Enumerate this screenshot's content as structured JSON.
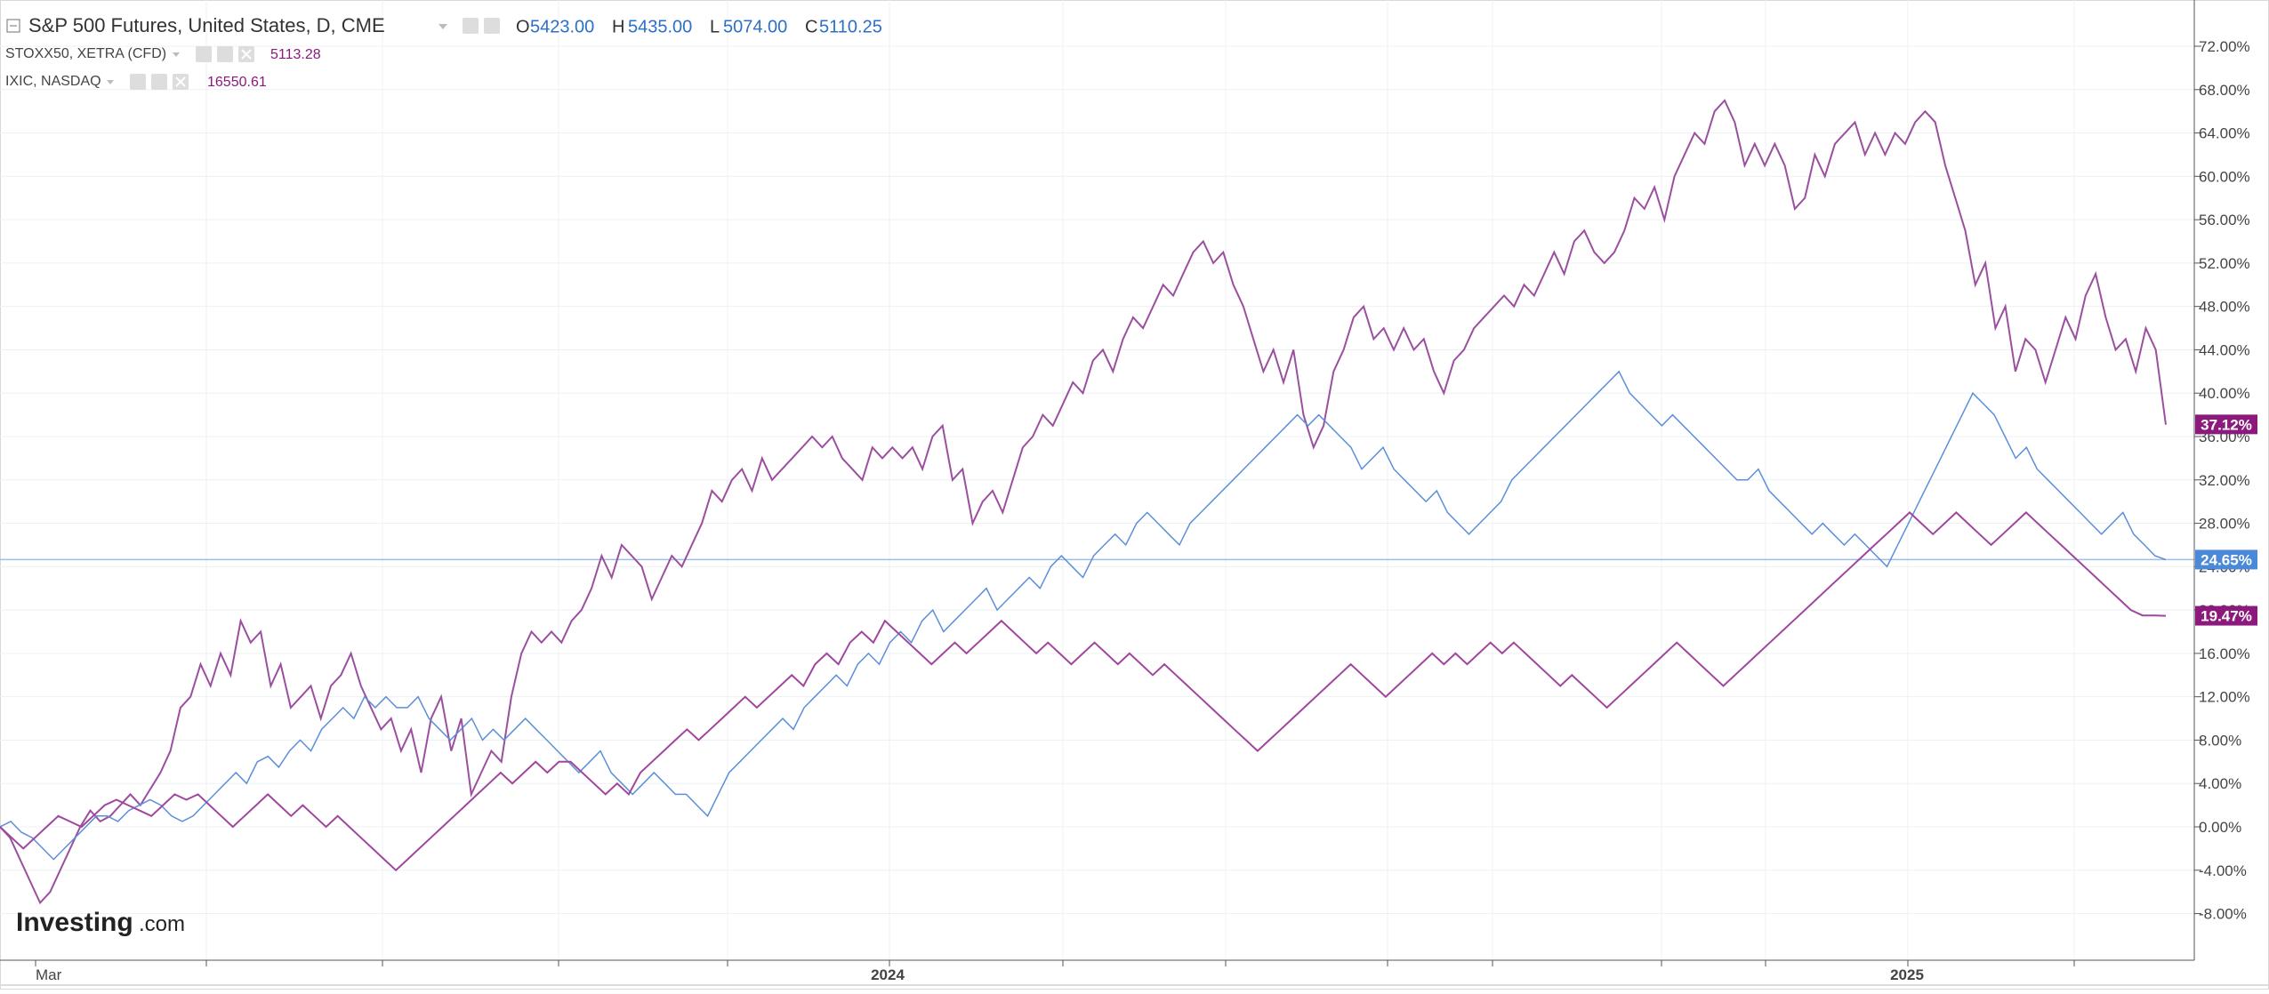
{
  "legend": {
    "main": {
      "title": "S&P 500 Futures, United States, D, CME",
      "o_label": "O",
      "o_value": "5423.00",
      "h_label": "H",
      "h_value": "5435.00",
      "l_label": "L",
      "l_value": "5074.00",
      "c_label": "C",
      "c_value": "5110.25"
    },
    "rows": [
      {
        "title": "STOXX50, XETRA (CFD)",
        "value": "5113.28"
      },
      {
        "title": "IXIC, NASDAQ",
        "value": "16550.61"
      }
    ]
  },
  "watermark": {
    "brand": "Investing",
    "suffix": ".com"
  },
  "colors": {
    "sp500": "#5b8fd9",
    "stoxx50": "#9b4f9f",
    "ixic": "#a0479d",
    "label_purple": "#8b1a7c",
    "label_blue": "#4a88d8",
    "legend_value_blue": "#2c6fc7",
    "legend_value_purple": "#8b1a7c",
    "grid": "#eef0f3",
    "axis_text": "#444444"
  },
  "chart_data": {
    "type": "line",
    "ylim": [
      -10.0,
      76.0
    ],
    "y_ticks": [
      "-8.00%",
      "-4.00%",
      "0.00%",
      "4.00%",
      "8.00%",
      "12.00%",
      "16.00%",
      "20.00%",
      "24.00%",
      "28.00%",
      "32.00%",
      "36.00%",
      "40.00%",
      "44.00%",
      "48.00%",
      "52.00%",
      "56.00%",
      "60.00%",
      "64.00%",
      "68.00%",
      "72.00%"
    ],
    "x_tick_labels": [
      "Mar",
      "2024",
      "2025"
    ],
    "series_stoxx_points": [
      [
        0,
        0
      ],
      [
        0.5,
        -1
      ],
      [
        1,
        -3
      ],
      [
        1.5,
        -5
      ],
      [
        2,
        -7
      ],
      [
        2.5,
        -6
      ],
      [
        3,
        -4
      ],
      [
        3.5,
        -2
      ],
      [
        4,
        0
      ],
      [
        4.5,
        1.5
      ],
      [
        5,
        0.5
      ],
      [
        5.5,
        1
      ],
      [
        6,
        2
      ],
      [
        6.5,
        3
      ],
      [
        7,
        2
      ],
      [
        7.5,
        3.5
      ],
      [
        8,
        5
      ],
      [
        8.5,
        7
      ],
      [
        9,
        11
      ],
      [
        9.5,
        12
      ],
      [
        10,
        15
      ],
      [
        10.5,
        13
      ],
      [
        11,
        16
      ],
      [
        11.5,
        14
      ],
      [
        12,
        19
      ],
      [
        12.5,
        17
      ],
      [
        13,
        18
      ],
      [
        13.5,
        13
      ],
      [
        14,
        15
      ],
      [
        14.5,
        11
      ],
      [
        15,
        12
      ],
      [
        15.5,
        13
      ],
      [
        16,
        10
      ],
      [
        16.5,
        13
      ],
      [
        17,
        14
      ],
      [
        17.5,
        16
      ],
      [
        18,
        13
      ],
      [
        18.5,
        11
      ],
      [
        19,
        9
      ],
      [
        19.5,
        10
      ],
      [
        20,
        7
      ],
      [
        20.5,
        9
      ],
      [
        21,
        5
      ],
      [
        21.5,
        10
      ],
      [
        22,
        12
      ],
      [
        22.5,
        7
      ],
      [
        23,
        10
      ],
      [
        23.5,
        3
      ],
      [
        24,
        5
      ],
      [
        24.5,
        7
      ],
      [
        25,
        6
      ],
      [
        25.5,
        12
      ],
      [
        26,
        16
      ],
      [
        26.5,
        18
      ],
      [
        27,
        17
      ],
      [
        27.5,
        18
      ],
      [
        28,
        17
      ],
      [
        28.5,
        19
      ],
      [
        29,
        20
      ],
      [
        29.5,
        22
      ],
      [
        30,
        25
      ],
      [
        30.5,
        23
      ],
      [
        31,
        26
      ],
      [
        31.5,
        25
      ],
      [
        32,
        24
      ],
      [
        32.5,
        21
      ],
      [
        33,
        23
      ],
      [
        33.5,
        25
      ],
      [
        34,
        24
      ],
      [
        34.5,
        26
      ],
      [
        35,
        28
      ],
      [
        35.5,
        31
      ],
      [
        36,
        30
      ],
      [
        36.5,
        32
      ],
      [
        37,
        33
      ],
      [
        37.5,
        31
      ],
      [
        38,
        34
      ],
      [
        38.5,
        32
      ],
      [
        39,
        33
      ],
      [
        39.5,
        34
      ],
      [
        40,
        35
      ],
      [
        40.5,
        36
      ],
      [
        41,
        35
      ],
      [
        41.5,
        36
      ],
      [
        42,
        34
      ],
      [
        42.5,
        33
      ],
      [
        43,
        32
      ],
      [
        43.5,
        35
      ],
      [
        44,
        34
      ],
      [
        44.5,
        35
      ],
      [
        45,
        34
      ],
      [
        45.5,
        35
      ],
      [
        46,
        33
      ],
      [
        46.5,
        36
      ],
      [
        47,
        37
      ],
      [
        47.5,
        32
      ],
      [
        48,
        33
      ],
      [
        48.5,
        28
      ],
      [
        49,
        30
      ],
      [
        49.5,
        31
      ],
      [
        50,
        29
      ],
      [
        50.5,
        32
      ],
      [
        51,
        35
      ],
      [
        51.5,
        36
      ],
      [
        52,
        38
      ],
      [
        52.5,
        37
      ],
      [
        53,
        39
      ],
      [
        53.5,
        41
      ],
      [
        54,
        40
      ],
      [
        54.5,
        43
      ],
      [
        55,
        44
      ],
      [
        55.5,
        42
      ],
      [
        56,
        45
      ],
      [
        56.5,
        47
      ],
      [
        57,
        46
      ],
      [
        57.5,
        48
      ],
      [
        58,
        50
      ],
      [
        58.5,
        49
      ],
      [
        59,
        51
      ],
      [
        59.5,
        53
      ],
      [
        60,
        54
      ],
      [
        60.5,
        52
      ],
      [
        61,
        53
      ],
      [
        61.5,
        50
      ],
      [
        62,
        48
      ],
      [
        62.5,
        45
      ],
      [
        63,
        42
      ],
      [
        63.5,
        44
      ],
      [
        64,
        41
      ],
      [
        64.5,
        44
      ],
      [
        65,
        38
      ],
      [
        65.5,
        35
      ],
      [
        66,
        37
      ],
      [
        66.5,
        42
      ],
      [
        67,
        44
      ],
      [
        67.5,
        47
      ],
      [
        68,
        48
      ],
      [
        68.5,
        45
      ],
      [
        69,
        46
      ],
      [
        69.5,
        44
      ],
      [
        70,
        46
      ],
      [
        70.5,
        44
      ],
      [
        71,
        45
      ],
      [
        71.5,
        42
      ],
      [
        72,
        40
      ],
      [
        72.5,
        43
      ],
      [
        73,
        44
      ],
      [
        73.5,
        46
      ],
      [
        74,
        47
      ],
      [
        74.5,
        48
      ],
      [
        75,
        49
      ],
      [
        75.5,
        48
      ],
      [
        76,
        50
      ],
      [
        76.5,
        49
      ],
      [
        77,
        51
      ],
      [
        77.5,
        53
      ],
      [
        78,
        51
      ],
      [
        78.5,
        54
      ],
      [
        79,
        55
      ],
      [
        79.5,
        53
      ],
      [
        80,
        52
      ],
      [
        80.5,
        53
      ],
      [
        81,
        55
      ],
      [
        81.5,
        58
      ],
      [
        82,
        57
      ],
      [
        82.5,
        59
      ],
      [
        83,
        56
      ],
      [
        83.5,
        60
      ],
      [
        84,
        62
      ],
      [
        84.5,
        64
      ],
      [
        85,
        63
      ],
      [
        85.5,
        66
      ],
      [
        86,
        67
      ],
      [
        86.5,
        65
      ],
      [
        87,
        61
      ],
      [
        87.5,
        63
      ],
      [
        88,
        61
      ],
      [
        88.5,
        63
      ],
      [
        89,
        61
      ],
      [
        89.5,
        57
      ],
      [
        90,
        58
      ],
      [
        90.5,
        62
      ],
      [
        91,
        60
      ],
      [
        91.5,
        63
      ],
      [
        92,
        64
      ],
      [
        92.5,
        65
      ],
      [
        93,
        62
      ],
      [
        93.5,
        64
      ],
      [
        94,
        62
      ],
      [
        94.5,
        64
      ],
      [
        95,
        63
      ],
      [
        95.5,
        65
      ],
      [
        96,
        66
      ],
      [
        96.5,
        65
      ],
      [
        97,
        61
      ],
      [
        97.5,
        58
      ],
      [
        98,
        55
      ],
      [
        98.5,
        50
      ],
      [
        99,
        52
      ],
      [
        99.5,
        46
      ],
      [
        100,
        48
      ],
      [
        100.5,
        42
      ],
      [
        101,
        45
      ],
      [
        101.5,
        44
      ],
      [
        102,
        41
      ],
      [
        102.5,
        44
      ],
      [
        103,
        47
      ],
      [
        103.5,
        45
      ],
      [
        104,
        49
      ],
      [
        104.5,
        51
      ],
      [
        105,
        47
      ],
      [
        105.5,
        44
      ],
      [
        106,
        45
      ],
      [
        106.5,
        42
      ],
      [
        107,
        46
      ],
      [
        107.5,
        44
      ],
      [
        108,
        37.1
      ]
    ],
    "series": [
      {
        "name": "",
        "values": [
          0,
          0.5,
          -0.5,
          -1,
          -2,
          -3,
          -2,
          -1,
          0,
          1,
          1,
          0.5,
          1.5,
          2,
          2.5,
          2,
          1,
          0.5,
          1,
          2,
          3,
          4,
          5,
          4,
          6,
          6.5,
          5.5,
          7,
          8,
          7,
          9,
          10,
          11,
          10,
          12,
          11,
          12,
          11,
          11,
          12,
          10,
          9,
          8,
          9,
          10,
          8,
          9,
          8,
          9,
          10,
          9,
          8,
          7,
          6,
          5,
          6,
          7,
          5,
          4,
          3,
          4,
          5,
          4,
          3,
          3,
          2,
          1,
          3,
          5,
          6,
          7,
          8,
          9,
          10,
          9,
          11,
          12,
          13,
          14,
          13,
          15,
          16,
          15,
          17,
          18,
          17,
          19,
          20,
          18,
          19,
          20,
          21,
          22,
          20,
          21,
          22,
          23,
          22,
          24,
          25,
          24,
          23,
          25,
          26,
          27,
          26,
          28,
          29,
          28,
          27,
          26,
          28,
          29,
          30,
          31,
          32,
          33,
          34,
          35,
          36,
          37,
          38,
          37,
          38,
          37,
          36,
          35,
          33,
          34,
          35,
          33,
          32,
          31,
          30,
          31,
          29,
          28,
          27,
          28,
          29,
          30,
          32,
          33,
          34,
          35,
          36,
          37,
          38,
          39,
          40,
          41,
          42,
          40,
          39,
          38,
          37,
          38,
          37,
          36,
          35,
          34,
          33,
          32,
          32,
          33,
          31,
          30,
          29,
          28,
          27,
          28,
          27,
          26,
          27,
          26,
          25,
          24,
          26,
          28,
          30,
          32,
          34,
          36,
          38,
          40,
          39,
          38,
          36,
          34,
          35,
          33,
          32,
          31,
          30,
          29,
          28,
          27,
          28,
          29,
          27,
          26,
          25,
          24.65
        ]
      },
      {
        "name": "",
        "values": [
          0,
          -1,
          -2,
          -1,
          0,
          1,
          0.5,
          0,
          1,
          2,
          2.5,
          2,
          1.5,
          1,
          2,
          3,
          2.5,
          3,
          2,
          1,
          0,
          1,
          2,
          3,
          2,
          1,
          2,
          1,
          0,
          1,
          0,
          -1,
          -2,
          -3,
          -4,
          -3,
          -2,
          -1,
          0,
          1,
          2,
          3,
          4,
          5,
          4,
          5,
          6,
          5,
          6,
          6,
          5,
          4,
          3,
          4,
          3,
          5,
          6,
          7,
          8,
          9,
          8,
          9,
          10,
          11,
          12,
          11,
          12,
          13,
          14,
          13,
          15,
          16,
          15,
          17,
          18,
          17,
          19,
          18,
          17,
          16,
          15,
          16,
          17,
          16,
          17,
          18,
          19,
          18,
          17,
          16,
          17,
          16,
          15,
          16,
          17,
          16,
          15,
          16,
          15,
          14,
          15,
          14,
          13,
          12,
          11,
          10,
          9,
          8,
          7,
          8,
          9,
          10,
          11,
          12,
          13,
          14,
          15,
          14,
          13,
          12,
          13,
          14,
          15,
          16,
          15,
          16,
          15,
          16,
          17,
          16,
          17,
          16,
          15,
          14,
          13,
          14,
          13,
          12,
          11,
          12,
          13,
          14,
          15,
          16,
          17,
          16,
          15,
          14,
          13,
          14,
          15,
          16,
          17,
          18,
          19,
          20,
          21,
          22,
          23,
          24,
          25,
          26,
          27,
          28,
          29,
          28,
          27,
          28,
          29,
          28,
          27,
          26,
          27,
          28,
          29,
          28,
          27,
          26,
          25,
          24,
          23,
          22,
          21,
          20,
          19.5,
          19.5,
          19.47
        ]
      }
    ],
    "last_labels": {
      "stoxx": "37.12%",
      "sp500": "24.65%",
      "ixic": "19.47%"
    }
  }
}
